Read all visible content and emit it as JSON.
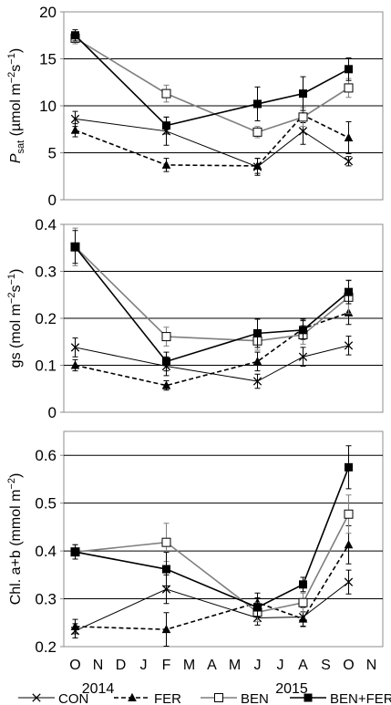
{
  "chart_data": [
    {
      "type": "line",
      "panel": "Psat",
      "ylabel": "Psat (µmol m−2s−1)",
      "ylabel_parts": {
        "var": "P",
        "sub": "sat",
        "rest": " (µmol m",
        "e1": "−2",
        "mid": "s",
        "e2": "−1",
        "close": ")"
      },
      "ylim": [
        0,
        20
      ],
      "yticks": [
        "0",
        "5",
        "10",
        "15",
        "20"
      ],
      "grid": true,
      "series": [
        {
          "name": "CON",
          "x": [
            0,
            4,
            8,
            10,
            12
          ],
          "y": [
            8.6,
            7.3,
            3.5,
            7.3,
            4.1
          ],
          "err": [
            0.8,
            1.5,
            0.9,
            1.4,
            0.5
          ]
        },
        {
          "name": "FER",
          "x": [
            0,
            4,
            8,
            10,
            12
          ],
          "y": [
            7.4,
            3.7,
            3.6,
            9.0,
            6.6
          ],
          "err": [
            0.7,
            0.7,
            0.8,
            0.8,
            1.7
          ]
        },
        {
          "name": "BEN",
          "x": [
            0,
            4,
            8,
            10,
            12
          ],
          "y": [
            17.2,
            11.3,
            7.2,
            8.8,
            11.9
          ],
          "err": [
            0.6,
            0.9,
            0.6,
            1.0,
            1.0
          ]
        },
        {
          "name": "BEN+FER",
          "x": [
            0,
            4,
            8,
            10,
            12
          ],
          "y": [
            17.5,
            7.9,
            10.2,
            11.3,
            13.9
          ],
          "err": [
            0.6,
            0.9,
            1.8,
            1.8,
            1.2
          ]
        }
      ]
    },
    {
      "type": "line",
      "panel": "gs",
      "ylabel": "gs (mol m−2s−1)",
      "ylabel_parts": {
        "var": "gs",
        "sub": "",
        "rest": " (mol m",
        "e1": "−2",
        "mid": "s",
        "e2": "−1",
        "close": ")"
      },
      "ylim": [
        0,
        0.4
      ],
      "yticks": [
        "0",
        "0.1",
        "0.2",
        "0.3",
        "0.4"
      ],
      "grid": true,
      "series": [
        {
          "name": "CON",
          "x": [
            0,
            4,
            8,
            10,
            12
          ],
          "y": [
            0.138,
            0.098,
            0.066,
            0.118,
            0.142
          ],
          "err": [
            0.02,
            0.02,
            0.015,
            0.02,
            0.02
          ]
        },
        {
          "name": "FER",
          "x": [
            0,
            4,
            8,
            10,
            12
          ],
          "y": [
            0.1,
            0.057,
            0.108,
            0.178,
            0.212
          ],
          "err": [
            0.012,
            0.01,
            0.02,
            0.02,
            0.025
          ]
        },
        {
          "name": "BEN",
          "x": [
            0,
            4,
            8,
            10,
            12
          ],
          "y": [
            0.352,
            0.161,
            0.152,
            0.165,
            0.245
          ],
          "err": [
            0.04,
            0.02,
            0.02,
            0.02,
            0.035
          ]
        },
        {
          "name": "BEN+FER",
          "x": [
            0,
            4,
            8,
            10,
            12
          ],
          "y": [
            0.352,
            0.108,
            0.168,
            0.175,
            0.256
          ],
          "err": [
            0.035,
            0.02,
            0.03,
            0.02,
            0.025
          ]
        }
      ]
    },
    {
      "type": "line",
      "panel": "Chl",
      "ylabel": "Chl. a+b (mmol m−2)",
      "ylabel_parts": {
        "var": "Chl. a+b",
        "sub": "",
        "rest": " (mmol m",
        "e1": "−2",
        "mid": "",
        "e2": "",
        "close": ")"
      },
      "ylim": [
        0.2,
        0.65
      ],
      "yticks": [
        "0.2",
        "0.3",
        "0.4",
        "0.5",
        "0.6"
      ],
      "grid": true,
      "series": [
        {
          "name": "CON",
          "x": [
            0,
            4,
            8,
            10,
            12
          ],
          "y": [
            0.233,
            0.32,
            0.26,
            0.262,
            0.335
          ],
          "err": [
            0.015,
            0.03,
            0.015,
            0.02,
            0.025
          ]
        },
        {
          "name": "FER",
          "x": [
            0,
            4,
            8,
            10,
            12
          ],
          "y": [
            0.242,
            0.236,
            0.292,
            0.258,
            0.413
          ],
          "err": [
            0.015,
            0.035,
            0.02,
            0.015,
            0.04
          ]
        },
        {
          "name": "BEN",
          "x": [
            0,
            4,
            8,
            10,
            12
          ],
          "y": [
            0.398,
            0.418,
            0.272,
            0.292,
            0.477
          ],
          "err": [
            0.015,
            0.04,
            0.02,
            0.02,
            0.04
          ]
        },
        {
          "name": "BEN+FER",
          "x": [
            0,
            4,
            8,
            10,
            12
          ],
          "y": [
            0.398,
            0.362,
            0.282,
            0.33,
            0.575
          ],
          "err": [
            0.015,
            0.035,
            0.02,
            0.015,
            0.045
          ]
        }
      ]
    }
  ],
  "x_axis": {
    "month_ticks": [
      "O",
      "N",
      "D",
      "J",
      "F",
      "M",
      "A",
      "M",
      "J",
      "J",
      "A",
      "S",
      "O",
      "N"
    ],
    "years": [
      "2014",
      "2015"
    ]
  },
  "series_styles": [
    {
      "name": "CON",
      "color": "#000000",
      "line": "solid",
      "width": 1,
      "marker": "x"
    },
    {
      "name": "FER",
      "color": "#000000",
      "line": "dashed",
      "width": 1.6,
      "marker": "triangle"
    },
    {
      "name": "BEN",
      "color": "#7f7f7f",
      "line": "solid",
      "width": 1.6,
      "marker": "open-square"
    },
    {
      "name": "BEN+FER",
      "color": "#000000",
      "line": "solid",
      "width": 1.6,
      "marker": "filled-square"
    }
  ],
  "legend": {
    "position": "bottom",
    "items": [
      "CON",
      "FER",
      "BEN",
      "BEN+FER"
    ]
  }
}
